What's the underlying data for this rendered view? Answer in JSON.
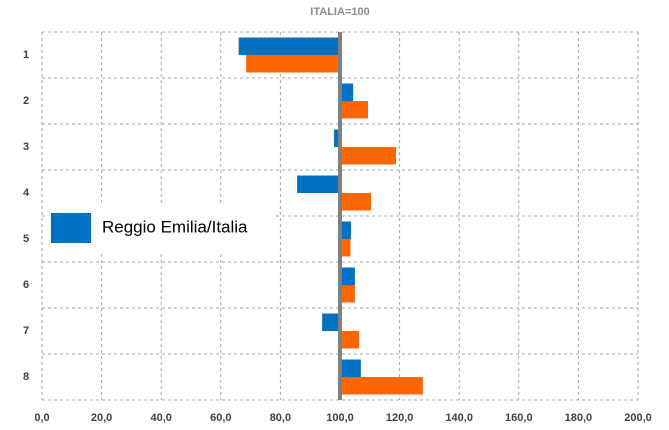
{
  "chart_data": {
    "type": "hbar",
    "title": "ITALIA=100",
    "categories": [
      "1",
      "2",
      "3",
      "4",
      "5",
      "6",
      "7",
      "8"
    ],
    "series": [
      {
        "name": "Reggio Emilia/Italia",
        "color": "#0070c0",
        "values": [
          66,
          104.4,
          98,
          85.6,
          103.7,
          105,
          94,
          107
        ]
      },
      {
        "color": "#ff6600",
        "values": [
          68.5,
          109.4,
          118.8,
          110.4,
          103.5,
          105,
          106.4,
          127.8
        ]
      }
    ],
    "baseline": 100,
    "xlim": [
      0,
      200
    ],
    "xticks": [
      {
        "value": 0,
        "label": "0,0"
      },
      {
        "value": 20,
        "label": "20,0"
      },
      {
        "value": 40,
        "label": "40,0"
      },
      {
        "value": 60,
        "label": "60,0"
      },
      {
        "value": 80,
        "label": "80,0"
      },
      {
        "value": 100,
        "label": "100,0"
      },
      {
        "value": 120,
        "label": "120,0"
      },
      {
        "value": 140,
        "label": "140,0"
      },
      {
        "value": 160,
        "label": "160,0"
      },
      {
        "value": 180,
        "label": "180,0"
      },
      {
        "value": 200,
        "label": "200,0"
      }
    ],
    "grid": true,
    "legend": "left"
  }
}
